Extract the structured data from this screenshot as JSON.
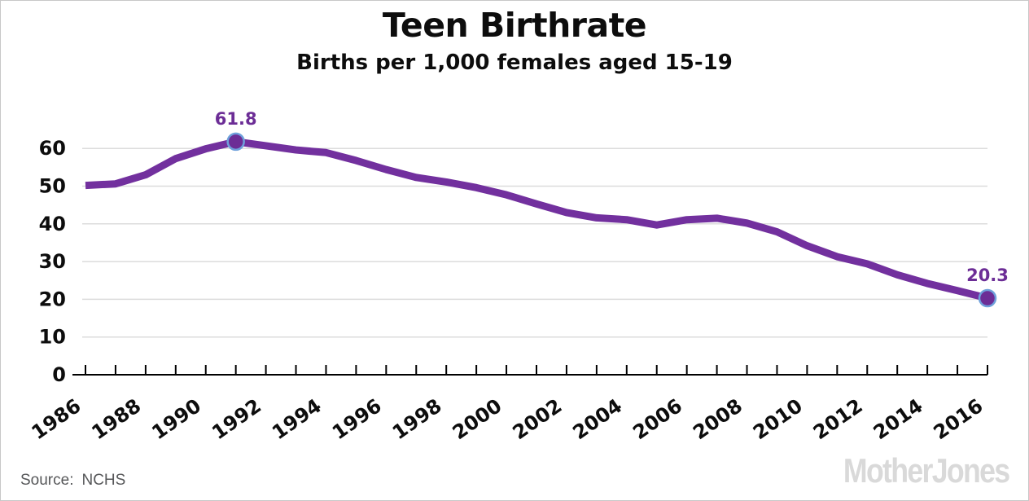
{
  "header": {
    "title": "Teen Birthrate",
    "subtitle": "Births per 1,000 females aged 15-19"
  },
  "footer": {
    "source_label": "Source:",
    "source_value": "NCHS",
    "logo_text": "MotherJones"
  },
  "colors": {
    "line": "#72309e",
    "data_label": "#6c2d96",
    "marker_fill": "#6c2d96",
    "marker_ring": "#6fa0db",
    "grid": "#dcdcdc",
    "axis": "#000000",
    "tick_text": "#0d0d0d",
    "source_text": "#57585a",
    "logo_gray": "#d9d9d9",
    "border": "#c8c8c8"
  },
  "chart_data": {
    "type": "line",
    "title": "Teen Birthrate",
    "subtitle": "Births per 1,000 females aged 15-19",
    "xlabel": "",
    "ylabel": "",
    "grid": "horizontal",
    "legend": "none",
    "ylim": [
      0,
      65
    ],
    "yticks": [
      0,
      10,
      20,
      30,
      40,
      50,
      60
    ],
    "xtick_labels": [
      "1986",
      "1988",
      "1990",
      "1992",
      "1994",
      "1996",
      "1998",
      "2000",
      "2002",
      "2004",
      "2006",
      "2008",
      "2010",
      "2012",
      "2014",
      "2016"
    ],
    "x": [
      1986,
      1987,
      1988,
      1989,
      1990,
      1991,
      1992,
      1993,
      1994,
      1995,
      1996,
      1997,
      1998,
      1999,
      2000,
      2001,
      2002,
      2003,
      2004,
      2005,
      2006,
      2007,
      2008,
      2009,
      2010,
      2011,
      2012,
      2013,
      2014,
      2015,
      2016
    ],
    "values": [
      50.2,
      50.6,
      53.0,
      57.3,
      59.9,
      61.8,
      60.7,
      59.6,
      58.9,
      56.8,
      54.4,
      52.3,
      51.1,
      49.6,
      47.7,
      45.3,
      43.0,
      41.6,
      41.1,
      39.7,
      41.1,
      41.5,
      40.2,
      37.9,
      34.2,
      31.3,
      29.4,
      26.5,
      24.2,
      22.3,
      20.3
    ],
    "annotations": [
      {
        "x": 1991,
        "y": 61.8,
        "label": "61.8"
      },
      {
        "x": 2016,
        "y": 20.3,
        "label": "20.3"
      }
    ]
  }
}
